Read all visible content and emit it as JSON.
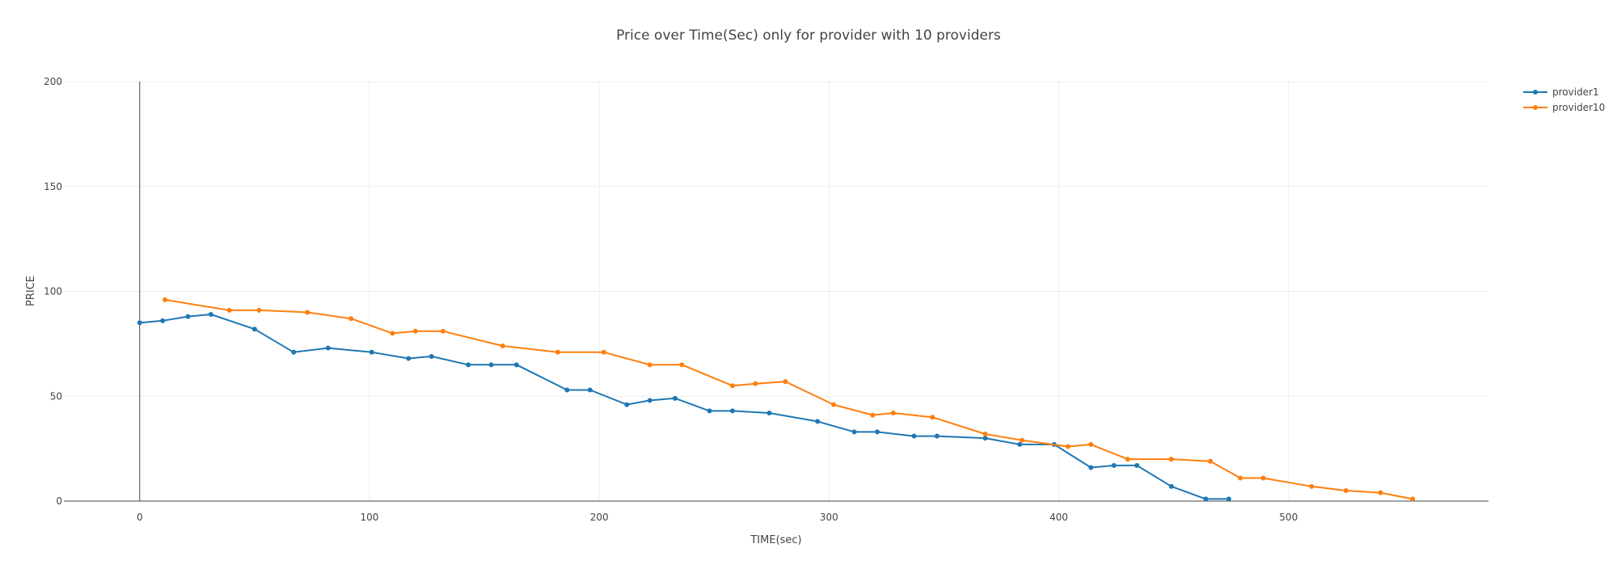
{
  "chart_data": {
    "type": "line",
    "title": "Price over Time(Sec) only for provider with 10 providers",
    "xlabel": "TIME(sec)",
    "ylabel": "PRICE",
    "xlim": [
      -33,
      587
    ],
    "ylim": [
      0,
      200
    ],
    "x_ticks": [
      0,
      100,
      200,
      300,
      400,
      500
    ],
    "y_ticks": [
      0,
      50,
      100,
      150,
      200
    ],
    "grid": true,
    "legend_position": "top-right",
    "series": [
      {
        "name": "provider1",
        "color": "#1f77b4",
        "points": [
          [
            0,
            85
          ],
          [
            10,
            86
          ],
          [
            21,
            88
          ],
          [
            31,
            89
          ],
          [
            50,
            82
          ],
          [
            67,
            71
          ],
          [
            82,
            73
          ],
          [
            101,
            71
          ],
          [
            117,
            68
          ],
          [
            127,
            69
          ],
          [
            143,
            65
          ],
          [
            153,
            65
          ],
          [
            164,
            65
          ],
          [
            186,
            53
          ],
          [
            196,
            53
          ],
          [
            212,
            46
          ],
          [
            222,
            48
          ],
          [
            233,
            49
          ],
          [
            248,
            43
          ],
          [
            258,
            43
          ],
          [
            274,
            42
          ],
          [
            295,
            38
          ],
          [
            311,
            33
          ],
          [
            321,
            33
          ],
          [
            337,
            31
          ],
          [
            347,
            31
          ],
          [
            368,
            30
          ],
          [
            383,
            27
          ],
          [
            398,
            27
          ],
          [
            414,
            16
          ],
          [
            424,
            17
          ],
          [
            434,
            17
          ],
          [
            449,
            7
          ],
          [
            464,
            1
          ],
          [
            474,
            1
          ]
        ]
      },
      {
        "name": "provider10",
        "color": "#ff7f0e",
        "points": [
          [
            11,
            96
          ],
          [
            39,
            91
          ],
          [
            52,
            91
          ],
          [
            73,
            90
          ],
          [
            92,
            87
          ],
          [
            110,
            80
          ],
          [
            120,
            81
          ],
          [
            132,
            81
          ],
          [
            158,
            74
          ],
          [
            182,
            71
          ],
          [
            202,
            71
          ],
          [
            222,
            65
          ],
          [
            236,
            65
          ],
          [
            258,
            55
          ],
          [
            268,
            56
          ],
          [
            281,
            57
          ],
          [
            302,
            46
          ],
          [
            319,
            41
          ],
          [
            328,
            42
          ],
          [
            345,
            40
          ],
          [
            368,
            32
          ],
          [
            384,
            29
          ],
          [
            404,
            26
          ],
          [
            414,
            27
          ],
          [
            430,
            20
          ],
          [
            449,
            20
          ],
          [
            466,
            19
          ],
          [
            479,
            11
          ],
          [
            489,
            11
          ],
          [
            510,
            7
          ],
          [
            525,
            5
          ],
          [
            540,
            4
          ],
          [
            554,
            1
          ]
        ]
      }
    ]
  }
}
